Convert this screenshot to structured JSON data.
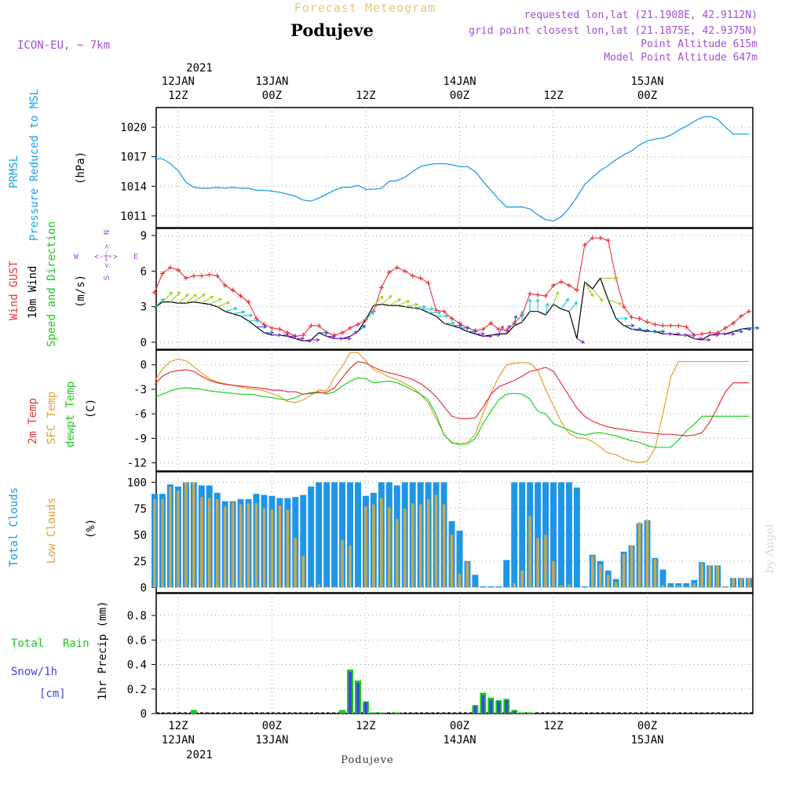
{
  "header": {
    "subtitle": "Forecast Meteogram",
    "location": "Podujeve",
    "model": "ICON-EU, ~ 7km",
    "requested": "requested lon,lat (21.1908E, 42.9112N)",
    "gridpoint": "grid point closest lon,lat (21.1875E, 42.9375N)",
    "point_alt": "Point Altitude 615m",
    "model_alt": "Model Point Altitude 647m",
    "footer": "Podujeve",
    "credit": "by Angel"
  },
  "time_axis": {
    "top_year": "2021",
    "bottom_year": "2021",
    "ticks": [
      {
        "t": 3,
        "hour": "12Z",
        "date": "12JAN"
      },
      {
        "t": 15,
        "hour": "00Z",
        "date": "13JAN"
      },
      {
        "t": 27,
        "hour": "12Z",
        "date": ""
      },
      {
        "t": 39,
        "hour": "00Z",
        "date": "14JAN"
      },
      {
        "t": 51,
        "hour": "12Z",
        "date": ""
      },
      {
        "t": 63,
        "hour": "00Z",
        "date": "15JAN"
      }
    ],
    "t_min": 0.2,
    "t_max": 76.5
  },
  "panel_labels": {
    "pressure": [
      "PRMSL",
      "Pressure Reduced to MSL",
      "(hPa)"
    ],
    "wind": [
      "Wind GUST",
      "10m Wind",
      "Speed and Direction",
      "(m/s)"
    ],
    "compass": {
      "n": "N",
      "s": "S",
      "w": "W",
      "e": "E",
      "arrow": "<-|->"
    },
    "temp": [
      "2m Temp",
      "SFC Temp",
      "dewpt Temp",
      "(C)"
    ],
    "clouds": [
      "Total Clouds",
      "Low Clouds",
      "(%)"
    ],
    "precip": [
      "Total",
      "Rain",
      "Snow/1h",
      "[cm]",
      "1hr Precip (mm)"
    ]
  },
  "colors": {
    "pressure": "#1e9ee6",
    "gust": "#e8343c",
    "wind": "#000000",
    "temp2m": "#e8343c",
    "sfc": "#e0a030",
    "dewpt": "#1ed21e",
    "total_clouds": "#1e96e6",
    "low_clouds": "#c8a850",
    "rain": "#1ec81e",
    "snow": "#3c46e6",
    "header_gold": "#e6c87a",
    "header_purple": "#a050d2"
  },
  "chart_data": [
    {
      "type": "line",
      "name": "PRMSL",
      "ylabel": "(hPa)",
      "yticks": [
        1011,
        1014,
        1017,
        1020
      ],
      "ylim": [
        1009.8,
        1022.0
      ],
      "x": [
        0,
        1,
        2,
        3,
        4,
        5,
        6,
        7,
        8,
        9,
        10,
        11,
        12,
        13,
        14,
        15,
        16,
        17,
        18,
        19,
        20,
        21,
        22,
        23,
        24,
        25,
        26,
        27,
        28,
        29,
        30,
        31,
        32,
        33,
        34,
        35,
        36,
        37,
        38,
        39,
        40,
        41,
        42,
        43,
        44,
        45,
        46,
        47,
        48,
        49,
        50,
        51,
        52,
        53,
        54,
        55,
        56,
        57,
        58,
        59,
        60,
        61,
        62,
        63,
        64,
        65,
        66,
        67,
        68,
        69,
        70,
        71,
        72,
        73,
        74,
        75,
        76
      ],
      "y": [
        1016.8,
        1016.8,
        1016.3,
        1015.6,
        1014.4,
        1013.9,
        1013.8,
        1013.8,
        1013.9,
        1013.8,
        1013.9,
        1013.8,
        1013.8,
        1013.6,
        1013.6,
        1013.5,
        1013.4,
        1013.2,
        1013.0,
        1012.6,
        1012.5,
        1012.8,
        1013.2,
        1013.6,
        1013.9,
        1013.9,
        1014.1,
        1013.7,
        1013.7,
        1013.8,
        1014.5,
        1014.6,
        1014.9,
        1015.5,
        1016.0,
        1016.2,
        1016.3,
        1016.3,
        1016.2,
        1016.0,
        1016.0,
        1015.5,
        1014.5,
        1013.6,
        1012.7,
        1011.9,
        1011.9,
        1011.9,
        1011.7,
        1011.1,
        1010.6,
        1010.5,
        1010.9,
        1011.8,
        1012.9,
        1014.2,
        1014.9,
        1015.6,
        1016.1,
        1016.7,
        1017.2,
        1017.6,
        1018.2,
        1018.6,
        1018.8,
        1018.9,
        1019.2,
        1019.7,
        1020.1,
        1020.6,
        1021.0,
        1021.1,
        1020.8,
        1020.0,
        1019.3,
        1019.3,
        1019.3
      ]
    },
    {
      "type": "line",
      "name": "Wind",
      "ylabel": "(m/s)",
      "yticks": [
        0,
        3,
        6,
        9
      ],
      "ylim": [
        -0.6,
        9.6
      ],
      "x": [
        0,
        1,
        2,
        3,
        4,
        5,
        6,
        7,
        8,
        9,
        10,
        11,
        12,
        13,
        14,
        15,
        16,
        17,
        18,
        19,
        20,
        21,
        22,
        23,
        24,
        25,
        26,
        27,
        28,
        29,
        30,
        31,
        32,
        33,
        34,
        35,
        36,
        37,
        38,
        39,
        40,
        41,
        42,
        43,
        44,
        45,
        46,
        47,
        48,
        49,
        50,
        51,
        52,
        53,
        54,
        55,
        56,
        57,
        58,
        59,
        60,
        61,
        62,
        63,
        64,
        65,
        66,
        67,
        68,
        69,
        70,
        71,
        72,
        73,
        74,
        75,
        76
      ],
      "gust": [
        4.2,
        5.8,
        6.3,
        6.1,
        5.4,
        5.6,
        5.6,
        5.7,
        5.6,
        4.8,
        4.4,
        3.9,
        3.4,
        2.0,
        1.5,
        1.2,
        1.1,
        0.8,
        0.5,
        0.6,
        1.4,
        1.4,
        0.8,
        0.6,
        0.8,
        1.2,
        1.5,
        1.9,
        2.6,
        4.6,
        5.9,
        6.3,
        6.0,
        5.6,
        5.4,
        5.0,
        2.7,
        2.6,
        2.0,
        1.6,
        1.2,
        1.0,
        1.1,
        1.6,
        1.1,
        1.0,
        1.6,
        2.3,
        4.1,
        4.0,
        3.9,
        4.8,
        5.1,
        4.8,
        4.4,
        8.2,
        8.8,
        8.8,
        8.6,
        5.4,
        3.0,
        2.1,
        2.0,
        1.7,
        1.5,
        1.4,
        1.4,
        1.4,
        1.3,
        0.6,
        0.7,
        0.8,
        0.8,
        1.2,
        1.6,
        2.2,
        2.6
      ],
      "speed": [
        2.9,
        3.4,
        3.4,
        3.3,
        3.3,
        3.4,
        3.3,
        3.2,
        3.0,
        2.6,
        2.4,
        2.2,
        1.8,
        1.3,
        0.8,
        0.6,
        0.6,
        0.5,
        0.3,
        0.1,
        0.2,
        0.8,
        0.5,
        0.3,
        0.3,
        0.5,
        0.9,
        1.9,
        3.1,
        3.2,
        3.1,
        3.1,
        3.0,
        2.9,
        2.8,
        2.5,
        2.2,
        1.6,
        1.4,
        1.2,
        0.9,
        0.7,
        0.5,
        0.6,
        0.7,
        0.7,
        1.4,
        1.7,
        2.6,
        2.6,
        2.3,
        3.2,
        2.8,
        2.6,
        0.3,
        5.1,
        4.5,
        5.4,
        3.6,
        2.0,
        1.4,
        1.1,
        1.0,
        0.9,
        0.9,
        0.7,
        0.7,
        0.6,
        0.6,
        0.3,
        0.2,
        0.6,
        0.7,
        0.7,
        0.9,
        1.1,
        1.2
      ],
      "dir_deg": [
        225,
        225,
        225,
        230,
        230,
        235,
        240,
        245,
        250,
        255,
        260,
        265,
        270,
        270,
        270,
        270,
        270,
        270,
        270,
        270,
        270,
        270,
        270,
        270,
        270,
        235,
        230,
        225,
        225,
        230,
        240,
        250,
        260,
        265,
        270,
        270,
        270,
        270,
        270,
        270,
        270,
        270,
        270,
        270,
        210,
        200,
        190,
        180,
        180,
        180,
        190,
        200,
        215,
        220,
        300,
        330,
        320,
        270,
        290,
        270,
        270,
        270,
        270,
        270,
        270,
        270,
        270,
        270,
        270,
        270,
        270,
        270,
        270,
        270,
        270,
        270,
        270
      ]
    },
    {
      "type": "line",
      "name": "Temperature",
      "ylabel": "(C)",
      "yticks": [
        -12,
        -9,
        -6,
        -3,
        0
      ],
      "ylim": [
        -13.0,
        1.8
      ],
      "x": [
        0,
        1,
        2,
        3,
        4,
        5,
        6,
        7,
        8,
        9,
        10,
        11,
        12,
        13,
        14,
        15,
        16,
        17,
        18,
        19,
        20,
        21,
        22,
        23,
        24,
        25,
        26,
        27,
        28,
        29,
        30,
        31,
        32,
        33,
        34,
        35,
        36,
        37,
        38,
        39,
        40,
        41,
        42,
        43,
        44,
        45,
        46,
        47,
        48,
        49,
        50,
        51,
        52,
        53,
        54,
        55,
        56,
        57,
        58,
        59,
        60,
        61,
        62,
        63,
        64,
        65,
        66,
        67,
        68,
        69,
        70,
        71,
        72,
        73,
        74,
        75,
        76
      ],
      "temp2m": [
        -2.4,
        -1.4,
        -0.9,
        -0.7,
        -0.6,
        -0.8,
        -1.4,
        -1.9,
        -2.2,
        -2.4,
        -2.5,
        -2.6,
        -2.7,
        -2.8,
        -2.9,
        -3.1,
        -3.1,
        -3.3,
        -3.3,
        -3.6,
        -3.5,
        -3.4,
        -3.4,
        -2.8,
        -1.6,
        -0.4,
        0.4,
        0.2,
        -0.3,
        -0.7,
        -1.0,
        -1.2,
        -1.5,
        -1.8,
        -2.3,
        -3.0,
        -3.9,
        -5.1,
        -6.3,
        -6.6,
        -6.6,
        -6.5,
        -5.2,
        -3.6,
        -2.7,
        -2.3,
        -1.9,
        -1.4,
        -0.8,
        -0.6,
        -0.3,
        -0.8,
        -2.3,
        -3.8,
        -5.3,
        -6.3,
        -6.9,
        -7.3,
        -7.6,
        -7.8,
        -7.9,
        -8.1,
        -8.2,
        -8.3,
        -8.4,
        -8.5,
        -8.5,
        -8.6,
        -8.7,
        -8.6,
        -8.3,
        -7.0,
        -5.2,
        -3.3,
        -2.2,
        -2.2,
        -2.2
      ],
      "sfc": [
        -2.0,
        -0.5,
        0.4,
        0.7,
        0.5,
        -0.2,
        -1.0,
        -1.7,
        -2.1,
        -2.3,
        -2.5,
        -2.7,
        -2.9,
        -3.0,
        -3.2,
        -3.5,
        -3.9,
        -4.5,
        -4.6,
        -4.3,
        -3.7,
        -3.1,
        -3.2,
        -1.5,
        -0.2,
        1.5,
        1.5,
        0.5,
        -0.6,
        -1.0,
        -1.5,
        -1.8,
        -2.3,
        -2.8,
        -3.6,
        -4.7,
        -6.6,
        -8.5,
        -9.6,
        -9.6,
        -9.5,
        -8.5,
        -6.0,
        -3.5,
        -1.5,
        0.0,
        0.2,
        0.3,
        0.2,
        -0.7,
        -3.0,
        -5.0,
        -7.0,
        -8.4,
        -8.9,
        -9.0,
        -9.4,
        -10.1,
        -10.8,
        -11.0,
        -11.5,
        -11.8,
        -12.0,
        -11.8,
        -10.2,
        -6.0,
        -1.5,
        0.4,
        0.4,
        0.4,
        0.4,
        0.4,
        0.4,
        0.4,
        0.4,
        0.4,
        0.4
      ],
      "dewpt": [
        -4.0,
        -3.6,
        -3.2,
        -2.9,
        -2.8,
        -2.9,
        -3.0,
        -3.2,
        -3.3,
        -3.4,
        -3.5,
        -3.6,
        -3.6,
        -3.7,
        -3.9,
        -4.0,
        -4.2,
        -4.3,
        -4.0,
        -3.6,
        -3.4,
        -3.3,
        -3.6,
        -3.3,
        -2.6,
        -2.0,
        -1.6,
        -1.7,
        -2.2,
        -2.1,
        -2.0,
        -2.2,
        -2.6,
        -3.1,
        -3.6,
        -4.3,
        -6.1,
        -8.6,
        -9.5,
        -9.8,
        -9.7,
        -9.0,
        -7.2,
        -5.7,
        -4.3,
        -3.6,
        -3.5,
        -3.6,
        -4.2,
        -5.7,
        -6.0,
        -7.2,
        -7.6,
        -8.0,
        -8.4,
        -8.6,
        -8.4,
        -8.3,
        -8.5,
        -8.7,
        -9.0,
        -9.3,
        -9.5,
        -9.9,
        -10.1,
        -10.1,
        -10.1,
        -9.2,
        -8.1,
        -7.3,
        -6.3,
        -6.3,
        -6.3,
        -6.3,
        -6.3,
        -6.3,
        -6.3
      ],
      "series": [
        {
          "name": "2m Temp",
          "key": "temp2m"
        },
        {
          "name": "SFC Temp",
          "key": "sfc"
        },
        {
          "name": "dewpt Temp",
          "key": "dewpt"
        }
      ]
    },
    {
      "type": "bar",
      "name": "Clouds",
      "ylabel": "(%)",
      "yticks": [
        0,
        25,
        50,
        75,
        100
      ],
      "ylim": [
        -5,
        110
      ],
      "x": [
        0,
        1,
        2,
        3,
        4,
        5,
        6,
        7,
        8,
        9,
        10,
        11,
        12,
        13,
        14,
        15,
        16,
        17,
        18,
        19,
        20,
        21,
        22,
        23,
        24,
        25,
        26,
        27,
        28,
        29,
        30,
        31,
        32,
        33,
        34,
        35,
        36,
        37,
        38,
        39,
        40,
        41,
        42,
        43,
        44,
        45,
        46,
        47,
        48,
        49,
        50,
        51,
        52,
        53,
        54,
        55,
        56,
        57,
        58,
        59,
        60,
        61,
        62,
        63,
        64,
        65,
        66,
        67,
        68,
        69,
        70,
        71,
        72,
        73,
        74,
        75,
        76
      ],
      "total": [
        89,
        89,
        98,
        96,
        100,
        100,
        97,
        97,
        90,
        82,
        82,
        84,
        84,
        89,
        88,
        87,
        85,
        85,
        86,
        88,
        96,
        100,
        100,
        100,
        100,
        100,
        100,
        87,
        90,
        100,
        100,
        97,
        100,
        100,
        100,
        100,
        100,
        100,
        63,
        54,
        25,
        12,
        1,
        1,
        1,
        26,
        100,
        100,
        100,
        100,
        100,
        100,
        100,
        100,
        95,
        1,
        31,
        25,
        16,
        8,
        34,
        40,
        61,
        64,
        28,
        17,
        4,
        4,
        4,
        7,
        24,
        21,
        21,
        1,
        9,
        9,
        9
      ],
      "low": [
        84,
        84,
        96,
        92,
        100,
        100,
        86,
        85,
        84,
        77,
        81,
        79,
        80,
        80,
        75,
        74,
        78,
        74,
        47,
        30,
        1,
        3,
        1,
        1,
        45,
        40,
        1,
        77,
        79,
        85,
        76,
        65,
        75,
        80,
        79,
        84,
        88,
        79,
        50,
        13,
        24,
        1,
        0,
        0,
        0,
        0,
        4,
        16,
        68,
        47,
        50,
        25,
        2,
        3,
        0,
        0,
        30,
        22,
        12,
        5,
        32,
        40,
        62,
        64,
        27,
        2,
        1,
        2,
        1,
        4,
        23,
        21,
        21,
        1,
        9,
        9,
        9
      ]
    },
    {
      "type": "bar",
      "name": "Precipitation",
      "ylabel": "1hr Precip (mm)",
      "yticks": [
        0,
        0.2,
        0.4,
        0.6,
        0.8
      ],
      "ylim": [
        0,
        0.98
      ],
      "x": [
        5,
        24,
        25,
        26,
        27,
        28,
        29,
        31,
        41,
        42,
        43,
        44,
        45,
        46,
        47,
        48
      ],
      "rain": [
        0.03,
        0.03,
        0.36,
        0.27,
        0.1,
        0.01,
        0.01,
        0.01,
        0.07,
        0.17,
        0.13,
        0.11,
        0.12,
        0.03,
        0.01,
        0.01
      ],
      "snow": [
        0.0,
        0.0,
        0.34,
        0.25,
        0.09,
        0.0,
        0.0,
        0.0,
        0.06,
        0.15,
        0.11,
        0.1,
        0.11,
        0.02,
        0.0,
        0.0
      ]
    }
  ]
}
